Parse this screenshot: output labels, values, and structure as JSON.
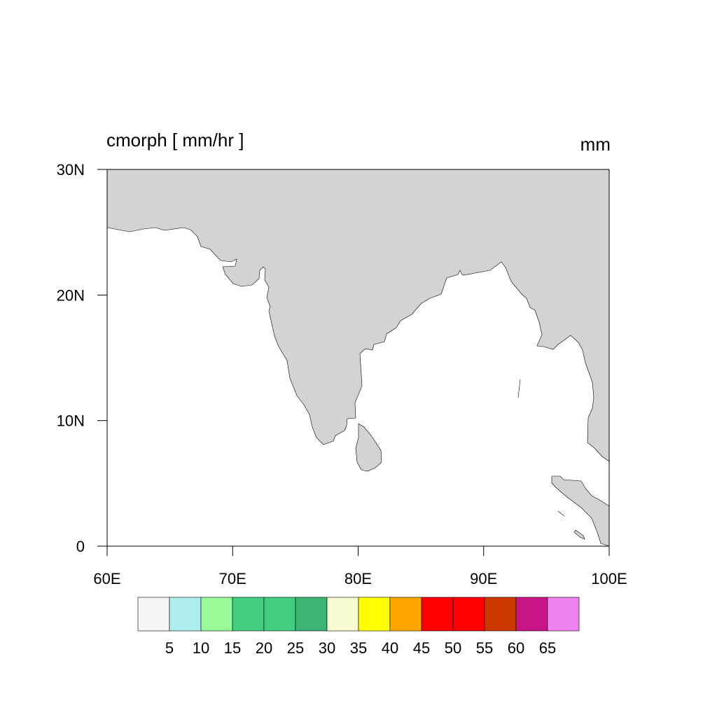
{
  "map": {
    "title_left": "cmorph [ mm/hr ]",
    "title_right": "mm",
    "lonlim": [
      60,
      100
    ],
    "latlim": [
      0,
      30
    ],
    "lon_ticks": [
      {
        "value": 60,
        "label": "60E"
      },
      {
        "value": 70,
        "label": "70E"
      },
      {
        "value": 80,
        "label": "80E"
      },
      {
        "value": 90,
        "label": "90E"
      },
      {
        "value": 100,
        "label": "100E"
      }
    ],
    "lat_ticks": [
      0,
      {
        "value": 10,
        "label": "10N"
      },
      {
        "value": 20,
        "label": "20N"
      },
      {
        "value": 30,
        "label": "30N"
      }
    ],
    "land_color": "#d3d3d3"
  },
  "colorbar": {
    "levels": [
      5,
      10,
      15,
      20,
      25,
      30,
      35,
      40,
      45,
      50,
      55,
      60,
      65
    ],
    "colors": [
      "#f5f5f5",
      "#afeeee",
      "#98fb98",
      "#43cd80",
      "#43cd80",
      "#3cb371",
      "#fafad2",
      "#ffff00",
      "#ffa500",
      "#ff0000",
      "#ff0000",
      "#cd3700",
      "#c71585",
      "#ee82ee"
    ]
  }
}
